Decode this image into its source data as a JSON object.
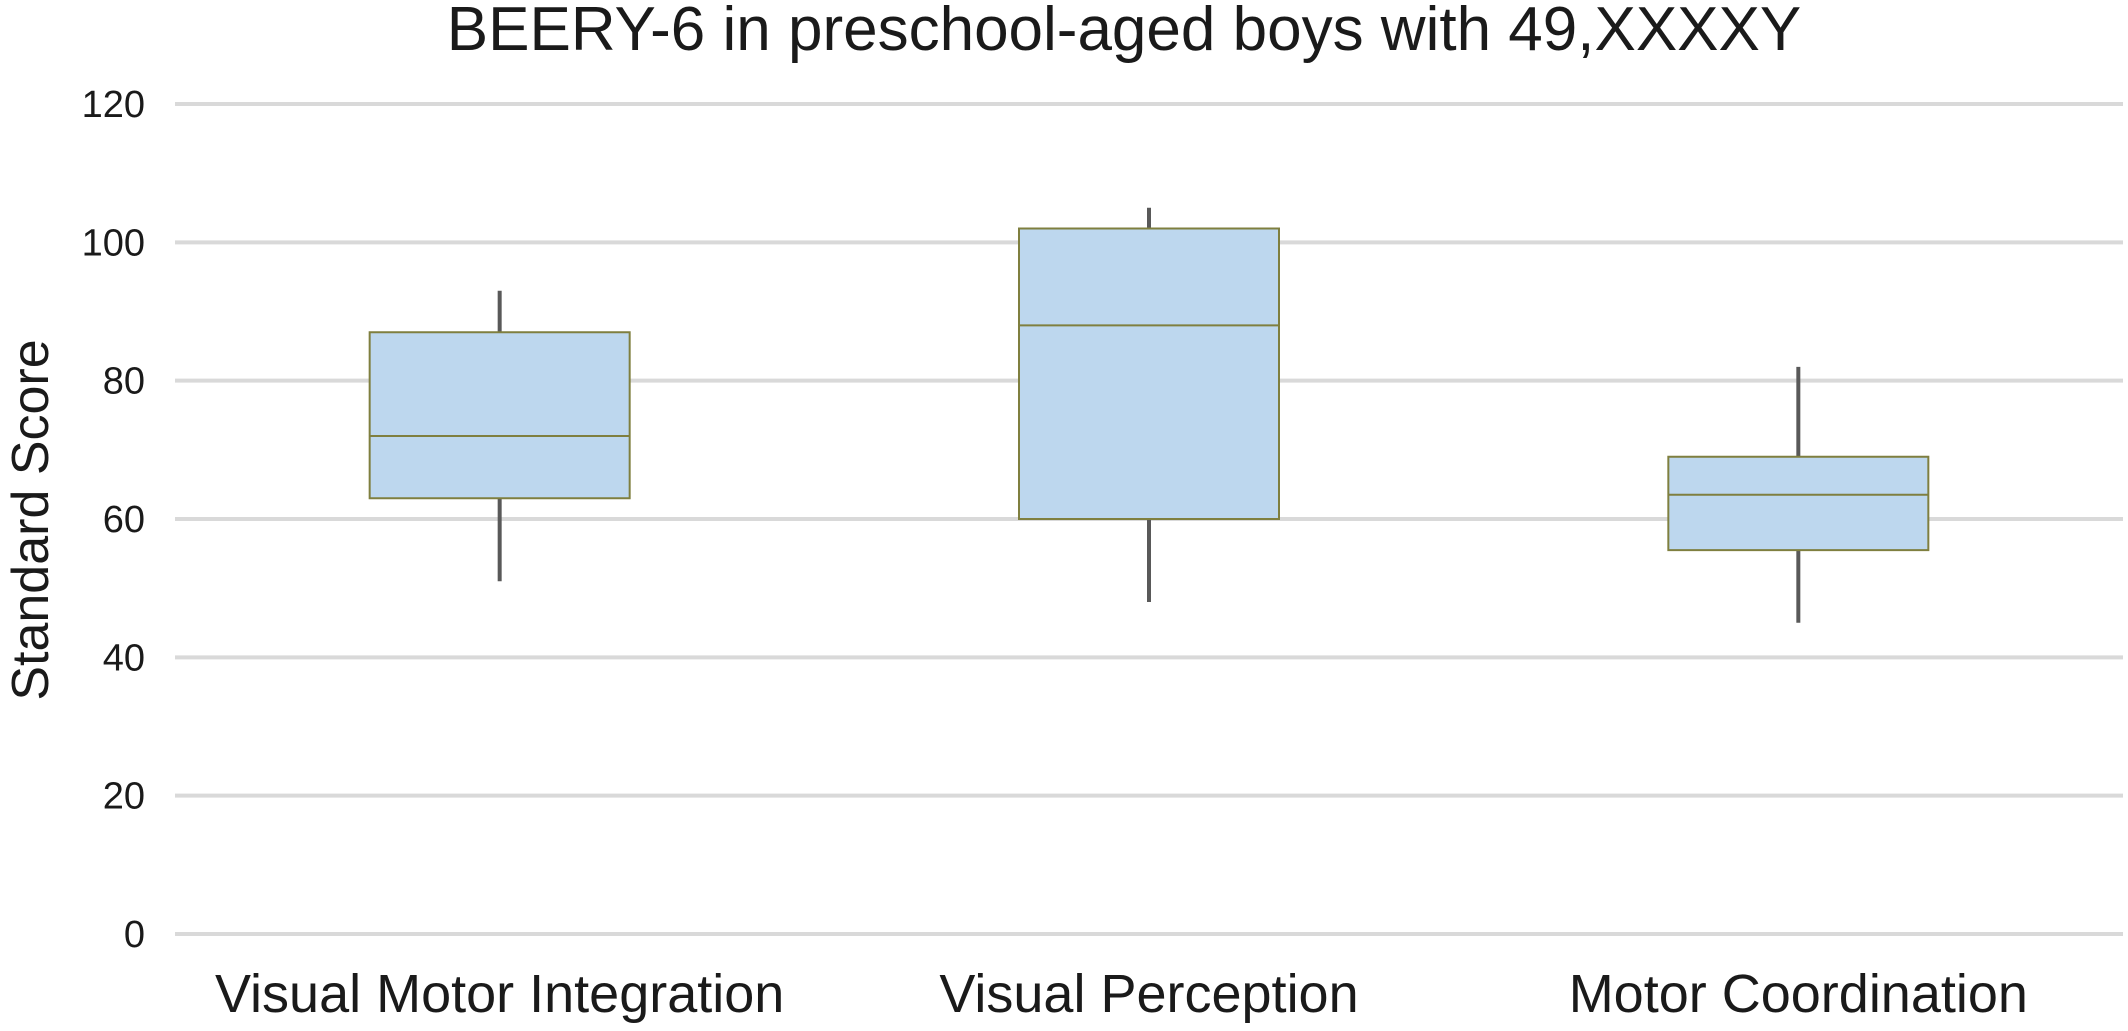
{
  "chart_data": {
    "type": "box",
    "title": "BEERY-6 in preschool-aged boys with 49,XXXXY",
    "xlabel": "",
    "ylabel": "Standard Score",
    "ylim": [
      0,
      120
    ],
    "yticks": [
      0,
      20,
      40,
      60,
      80,
      100,
      120
    ],
    "grid": true,
    "categories": [
      "Visual Motor Integration",
      "Visual Perception",
      "Motor Coordination"
    ],
    "boxes": [
      {
        "category": "Visual Motor Integration",
        "min": 51,
        "q1": 63,
        "median": 72,
        "q3": 87,
        "max": 93
      },
      {
        "category": "Visual Perception",
        "min": 48,
        "q1": 60,
        "median": 88,
        "q3": 102,
        "max": 105
      },
      {
        "category": "Motor Coordination",
        "min": 45,
        "q1": 55.5,
        "median": 63.5,
        "q3": 69,
        "max": 82
      }
    ],
    "colors": {
      "box_fill": "#bdd7ee",
      "box_edge": "#7f7f3f",
      "whisker": "#595959",
      "grid": "#d9d9d9"
    }
  }
}
